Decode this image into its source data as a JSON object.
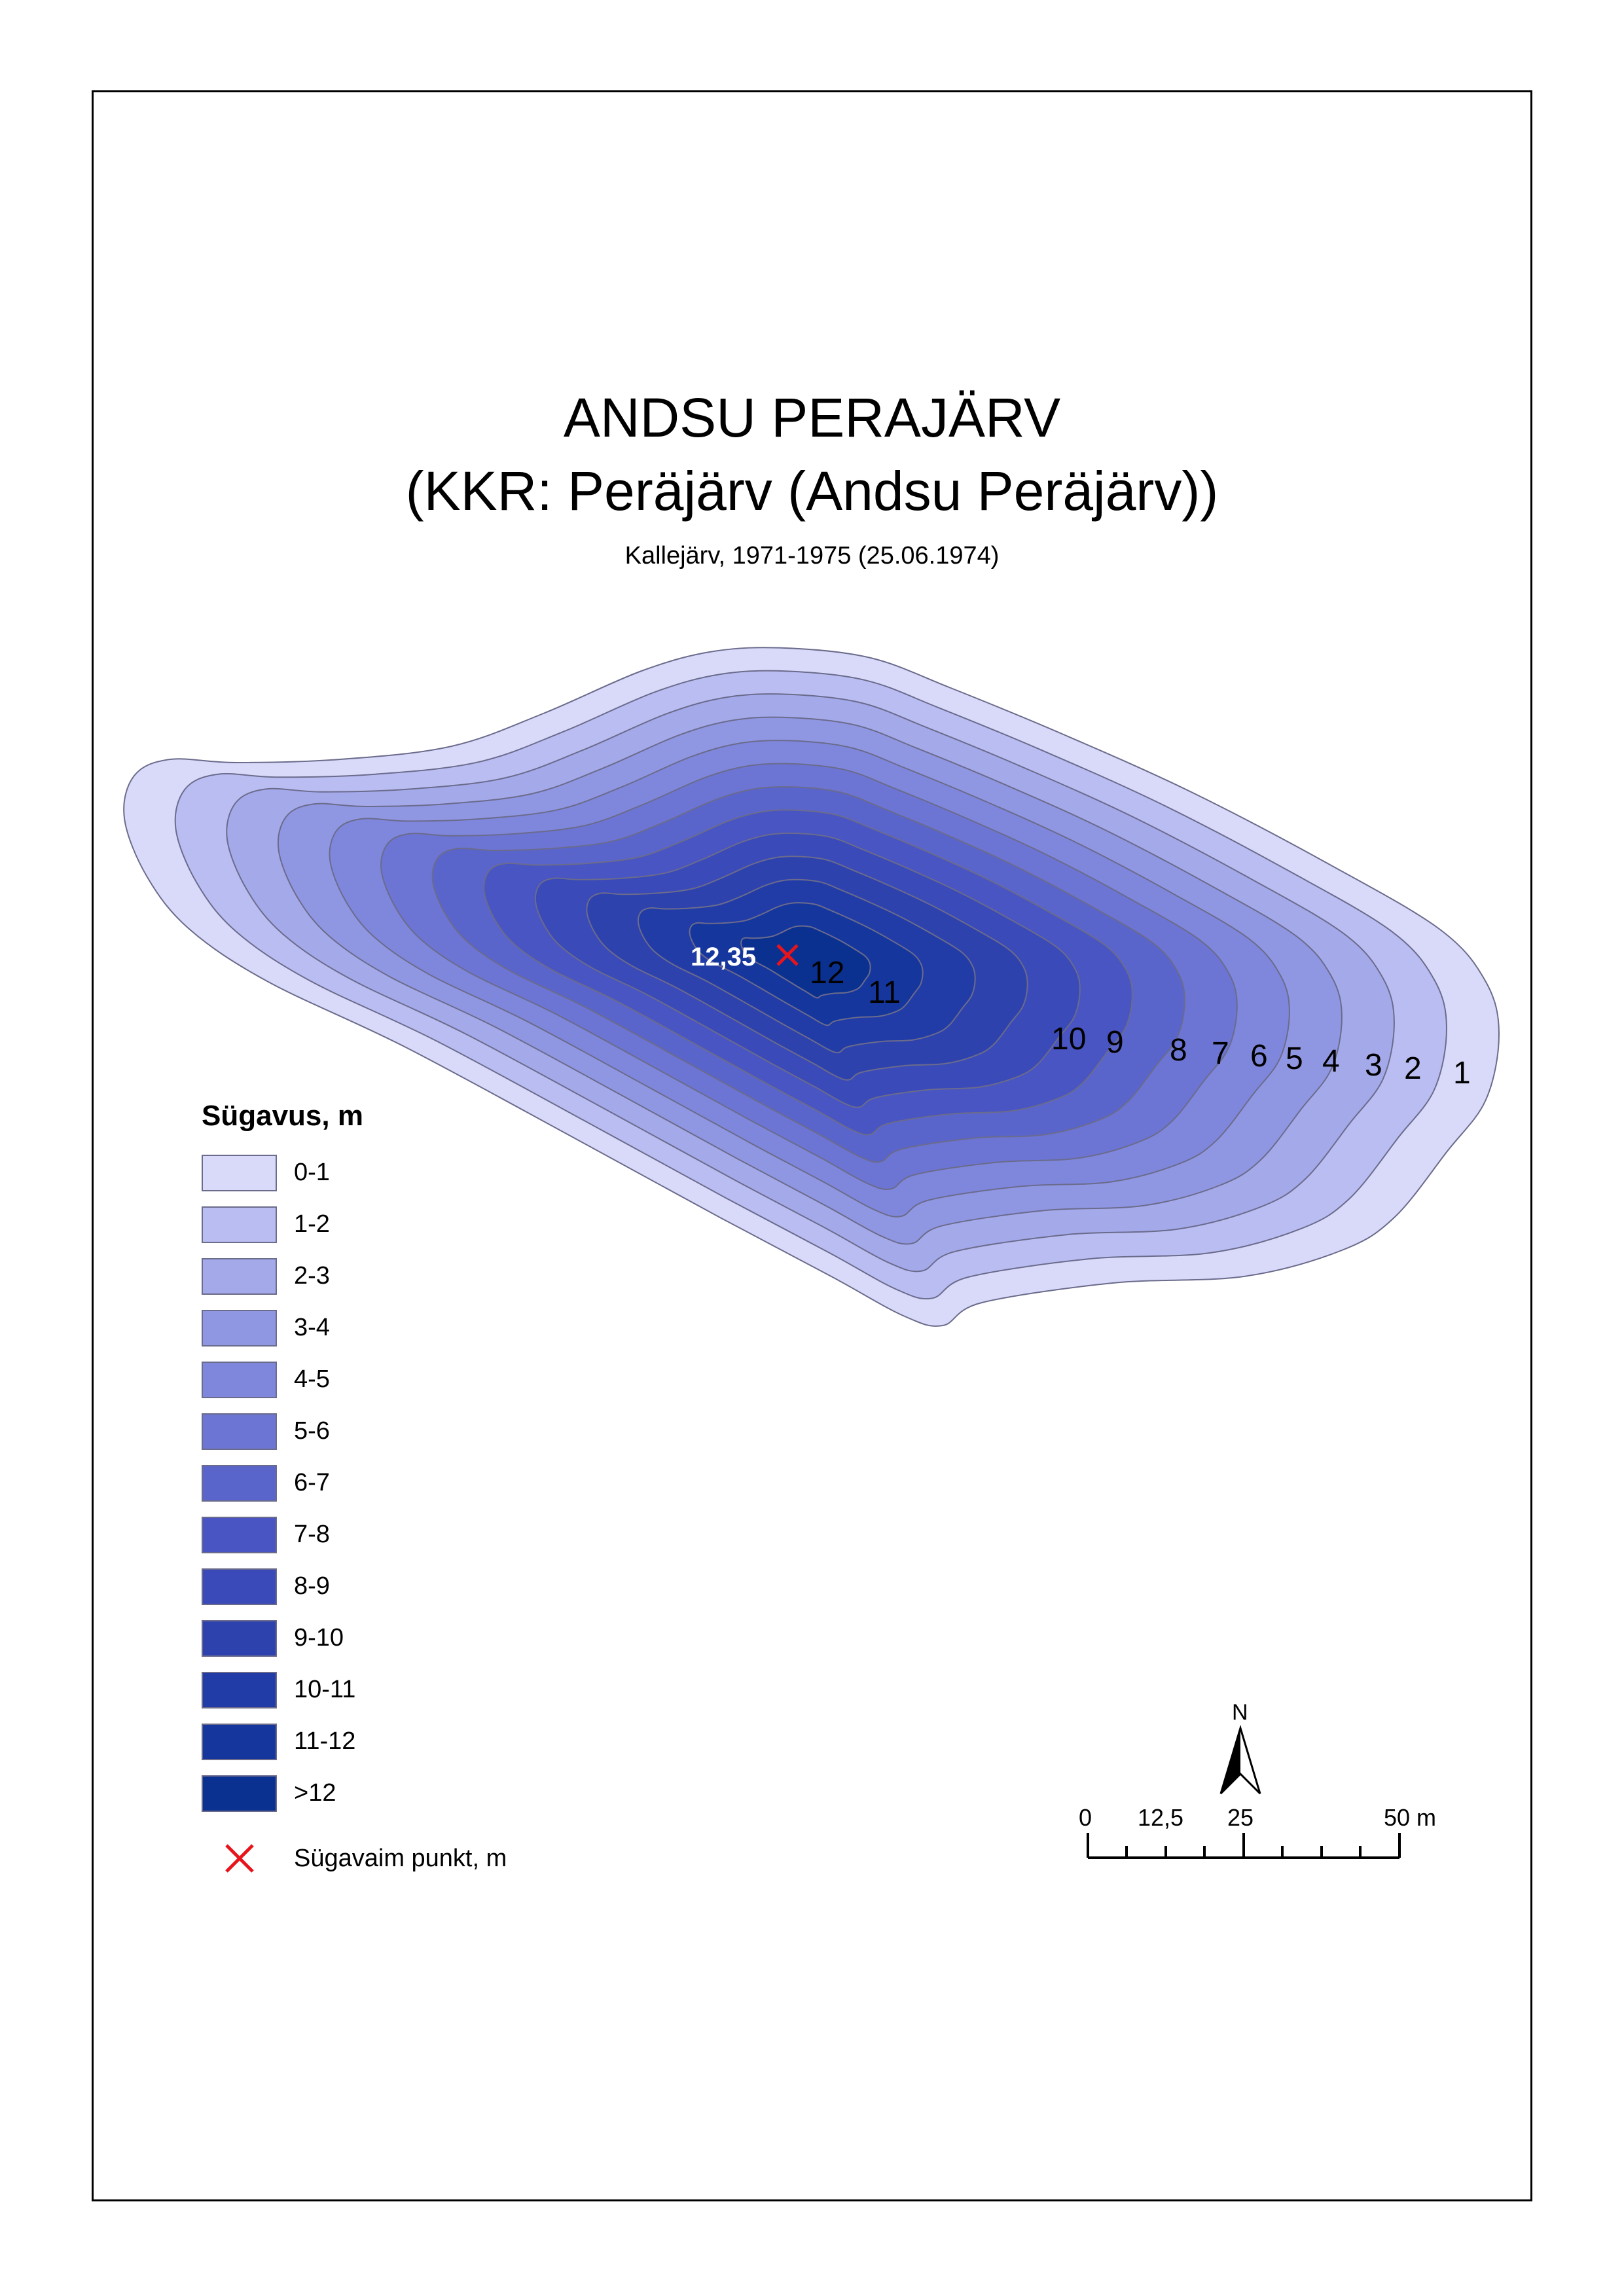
{
  "title": "ANDSU PERAJÄRV",
  "subtitle": "(KKR: Peräjärv (Andsu Peräjärv))",
  "source": "Kallejärv, 1971-1975 (25.06.1974)",
  "map": {
    "deepest_value": "12,35",
    "contour_labels": [
      "12",
      "11",
      "10",
      "9",
      "8",
      "7",
      "6",
      "5",
      "4",
      "3",
      "2",
      "1"
    ]
  },
  "legend": {
    "title": "Sügavus, m",
    "classes": [
      {
        "label": "0-1",
        "color": "#d9dafa"
      },
      {
        "label": "1-2",
        "color": "#babdf2"
      },
      {
        "label": "2-3",
        "color": "#a4a9ea"
      },
      {
        "label": "3-4",
        "color": "#9097e2"
      },
      {
        "label": "4-5",
        "color": "#7f87dc"
      },
      {
        "label": "5-6",
        "color": "#6c75d4"
      },
      {
        "label": "6-7",
        "color": "#5a65cc"
      },
      {
        "label": "7-8",
        "color": "#4855c2"
      },
      {
        "label": "8-9",
        "color": "#3a4ab8"
      },
      {
        "label": "9-10",
        "color": "#2e42ae"
      },
      {
        "label": "10-11",
        "color": "#213ca6"
      },
      {
        "label": "11-12",
        "color": "#15369d"
      },
      {
        "label": ">12",
        "color": "#0a3090"
      }
    ],
    "deepest_label": "Sügavaim punkt, m"
  },
  "north": "N",
  "scale": {
    "ticks": [
      "0",
      "12,5",
      "25",
      "50 m"
    ]
  }
}
